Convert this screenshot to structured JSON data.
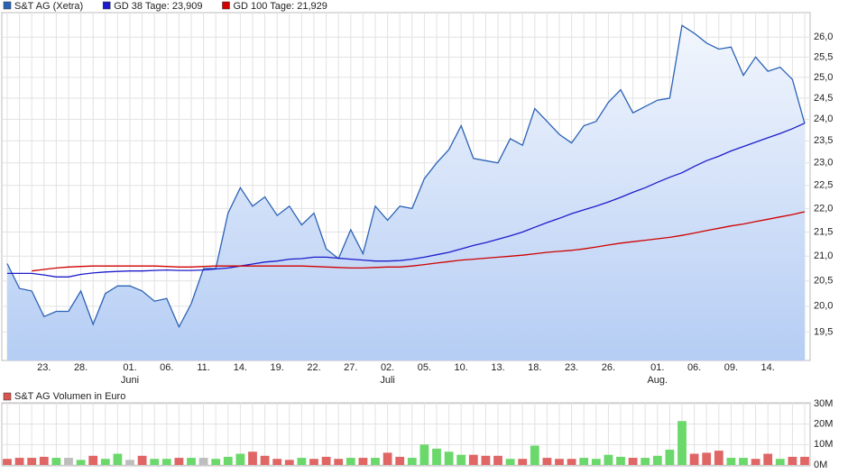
{
  "chart_data": [
    {
      "type": "line",
      "log_scale": true,
      "grid": true,
      "categories": [
        null,
        null,
        null,
        "23.",
        null,
        null,
        "28.",
        null,
        null,
        null,
        "01.",
        null,
        null,
        "06.",
        null,
        null,
        "11.",
        null,
        null,
        "14.",
        null,
        null,
        "19.",
        null,
        null,
        "22.",
        null,
        null,
        "27.",
        null,
        null,
        "02.",
        null,
        null,
        "05.",
        null,
        null,
        "10.",
        null,
        null,
        "13.",
        null,
        null,
        "18.",
        null,
        null,
        "23.",
        null,
        null,
        "26.",
        null,
        null,
        null,
        "01.",
        null,
        null,
        "06.",
        null,
        null,
        "09.",
        null,
        null,
        "14.",
        null,
        null,
        null
      ],
      "month_labels": [
        null,
        null,
        null,
        null,
        null,
        null,
        null,
        null,
        null,
        null,
        "Juni",
        null,
        null,
        null,
        null,
        null,
        null,
        null,
        null,
        null,
        null,
        null,
        null,
        null,
        null,
        null,
        null,
        null,
        null,
        null,
        null,
        "Juli",
        null,
        null,
        null,
        null,
        null,
        null,
        null,
        null,
        null,
        null,
        null,
        null,
        null,
        null,
        null,
        null,
        null,
        null,
        null,
        null,
        null,
        "Aug.",
        null,
        null,
        null,
        null,
        null,
        null,
        null,
        null,
        null,
        null,
        null,
        null
      ],
      "series": [
        {
          "name": "S&T AG (Xetra)",
          "color": "#2b62b5",
          "fill": "#b9d0f5",
          "values": [
            20.85,
            20.35,
            20.3,
            19.8,
            19.9,
            19.9,
            20.3,
            19.65,
            20.25,
            20.4,
            20.4,
            20.3,
            20.1,
            20.15,
            19.6,
            20.05,
            20.75,
            20.75,
            21.9,
            22.45,
            22.05,
            22.25,
            21.85,
            22.05,
            21.65,
            21.9,
            21.15,
            20.95,
            21.55,
            21.05,
            22.05,
            21.75,
            22.05,
            22.0,
            22.65,
            23.0,
            23.3,
            23.85,
            23.1,
            23.05,
            23.0,
            23.55,
            23.4,
            24.25,
            23.95,
            23.65,
            23.45,
            23.85,
            23.95,
            24.4,
            24.7,
            24.15,
            24.3,
            24.45,
            24.5,
            26.3,
            26.1,
            25.85,
            25.7,
            25.75,
            25.05,
            25.5,
            25.15,
            25.25,
            24.95,
            23.9
          ]
        },
        {
          "name": "GD 38 Tage: 23,909",
          "color": "#1c1ccc",
          "values": [
            20.65,
            20.65,
            20.65,
            20.62,
            20.58,
            20.58,
            20.63,
            20.66,
            20.68,
            20.69,
            20.7,
            20.7,
            20.71,
            20.72,
            20.71,
            20.71,
            20.72,
            20.74,
            20.76,
            20.8,
            20.84,
            20.88,
            20.9,
            20.94,
            20.95,
            20.98,
            20.98,
            20.96,
            20.94,
            20.92,
            20.9,
            20.9,
            20.91,
            20.94,
            20.98,
            21.03,
            21.08,
            21.15,
            21.22,
            21.28,
            21.35,
            21.42,
            21.5,
            21.6,
            21.7,
            21.79,
            21.89,
            21.97,
            22.05,
            22.14,
            22.24,
            22.35,
            22.45,
            22.57,
            22.68,
            22.78,
            22.92,
            23.05,
            23.15,
            23.27,
            23.37,
            23.47,
            23.57,
            23.67,
            23.78,
            23.909
          ]
        },
        {
          "name": "GD 100 Tage: 21,929",
          "color": "#d00000",
          "values": [
            null,
            null,
            20.7,
            20.73,
            20.76,
            20.78,
            20.79,
            20.8,
            20.8,
            20.8,
            20.8,
            20.8,
            20.8,
            20.79,
            20.78,
            20.78,
            20.79,
            20.8,
            20.8,
            20.8,
            20.8,
            20.8,
            20.8,
            20.8,
            20.8,
            20.79,
            20.78,
            20.77,
            20.76,
            20.76,
            20.77,
            20.78,
            20.78,
            20.8,
            20.83,
            20.86,
            20.89,
            20.92,
            20.94,
            20.96,
            20.98,
            21.0,
            21.02,
            21.05,
            21.08,
            21.1,
            21.12,
            21.15,
            21.19,
            21.23,
            21.27,
            21.3,
            21.33,
            21.36,
            21.39,
            21.43,
            21.48,
            21.53,
            21.58,
            21.63,
            21.67,
            21.72,
            21.77,
            21.82,
            21.87,
            21.929
          ]
        }
      ],
      "ylim": [
        18.97,
        26.63
      ],
      "yticks": [
        {
          "value": 19.5,
          "label": "19,5"
        },
        {
          "value": 20,
          "label": "20,0"
        },
        {
          "value": 20.5,
          "label": "20,5"
        },
        {
          "value": 21,
          "label": "21,0"
        },
        {
          "value": 21.5,
          "label": "21,5"
        },
        {
          "value": 22,
          "label": "22,0"
        },
        {
          "value": 22.5,
          "label": "22,5"
        },
        {
          "value": 23,
          "label": "23,0"
        },
        {
          "value": 23.5,
          "label": "23,5"
        },
        {
          "value": 24,
          "label": "24,0"
        },
        {
          "value": 24.5,
          "label": "24,5"
        },
        {
          "value": 25,
          "label": "25,0"
        },
        {
          "value": 25.5,
          "label": "25,5"
        },
        {
          "value": 26,
          "label": "26,0"
        }
      ]
    },
    {
      "type": "bar",
      "title": "S&T AG Volumen in Euro",
      "title_color": "#d9534f",
      "grid": true,
      "values": [
        3000000,
        3500000,
        3500000,
        4000000,
        3500000,
        3500000,
        2500000,
        4500000,
        3000000,
        5500000,
        2500000,
        4500000,
        3000000,
        3000000,
        3500000,
        3500000,
        3500000,
        3000000,
        4000000,
        5500000,
        6500000,
        4500000,
        3000000,
        2500000,
        3500000,
        3000000,
        4000000,
        3000000,
        3500000,
        3500000,
        3500000,
        6000000,
        4000000,
        3500000,
        10000000,
        8000000,
        6500000,
        5000000,
        5000000,
        4500000,
        4500000,
        3000000,
        3000000,
        9500000,
        3500000,
        3000000,
        3000000,
        3500000,
        3000000,
        5000000,
        4000000,
        3500000,
        3500000,
        4500000,
        7500000,
        21500000,
        5500000,
        6000000,
        7000000,
        3500000,
        3500000,
        3000000,
        5500000,
        3000000,
        4000000,
        4000000
      ],
      "colors": [
        "#e06565",
        "#e06565",
        "#e06565",
        "#e06565",
        "#6ad86a",
        "#bdbdbd",
        "#6ad86a",
        "#e06565",
        "#6ad86a",
        "#6ad86a",
        "#bdbdbd",
        "#e06565",
        "#6ad86a",
        "#6ad86a",
        "#e06565",
        "#6ad86a",
        "#bdbdbd",
        "#6ad86a",
        "#6ad86a",
        "#6ad86a",
        "#e06565",
        "#e06565",
        "#e06565",
        "#e06565",
        "#6ad86a",
        "#e06565",
        "#e06565",
        "#e06565",
        "#6ad86a",
        "#e06565",
        "#6ad86a",
        "#e06565",
        "#e06565",
        "#6ad86a",
        "#6ad86a",
        "#6ad86a",
        "#6ad86a",
        "#6ad86a",
        "#e06565",
        "#e06565",
        "#e06565",
        "#6ad86a",
        "#e06565",
        "#6ad86a",
        "#e06565",
        "#e06565",
        "#e06565",
        "#6ad86a",
        "#6ad86a",
        "#6ad86a",
        "#6ad86a",
        "#e06565",
        "#6ad86a",
        "#6ad86a",
        "#6ad86a",
        "#6ad86a",
        "#e06565",
        "#e06565",
        "#e06565",
        "#6ad86a",
        "#6ad86a",
        "#e06565",
        "#e06565",
        "#6ad86a",
        "#e06565",
        "#e06565"
      ],
      "ylim": [
        0,
        30000000
      ],
      "yticks": [
        {
          "value": 0,
          "label": "0M"
        },
        {
          "value": 10000000,
          "label": "10M"
        },
        {
          "value": 20000000,
          "label": "20M"
        },
        {
          "value": 30000000,
          "label": "30M"
        }
      ]
    }
  ]
}
